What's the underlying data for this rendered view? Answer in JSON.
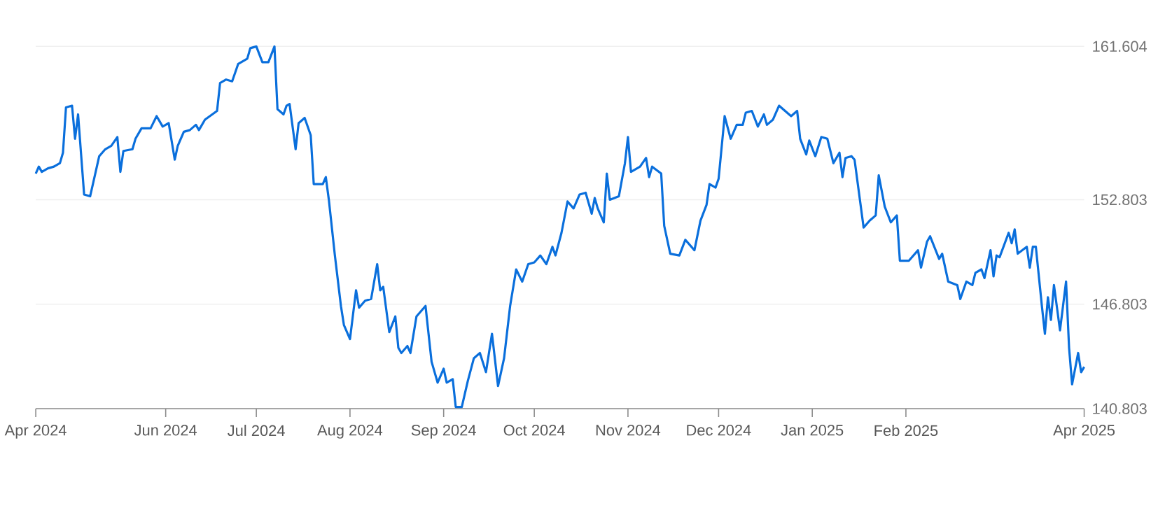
{
  "chart_data": {
    "type": "line",
    "color": "#0a6fdc",
    "grid": "y",
    "xlim": [
      "2024-04-19",
      "2025-04-01"
    ],
    "ylim": [
      140.803,
      161.604
    ],
    "yticks": [
      140.803,
      146.803,
      152.803,
      161.604
    ],
    "xticks": [
      {
        "value": "2024-04-19",
        "label": "Apr 2024"
      },
      {
        "value": "2024-06-01",
        "label": "Jun 2024"
      },
      {
        "value": "2024-07-01",
        "label": "Jul 2024"
      },
      {
        "value": "2024-08-01",
        "label": "Aug 2024"
      },
      {
        "value": "2024-09-01",
        "label": "Sep 2024"
      },
      {
        "value": "2024-10-01",
        "label": "Oct 2024"
      },
      {
        "value": "2024-11-01",
        "label": "Nov 2024"
      },
      {
        "value": "2024-12-01",
        "label": "Dec 2024"
      },
      {
        "value": "2025-01-01",
        "label": "Jan 2025"
      },
      {
        "value": "2025-02-01",
        "label": "Feb 2025"
      },
      {
        "value": "2025-04-01",
        "label": "Apr 2025"
      }
    ],
    "x": [
      "2024-04-19",
      "2024-04-20",
      "2024-04-21",
      "2024-04-23",
      "2024-04-25",
      "2024-04-27",
      "2024-04-28",
      "2024-04-29",
      "2024-05-01",
      "2024-05-02",
      "2024-05-03",
      "2024-05-05",
      "2024-05-07",
      "2024-05-10",
      "2024-05-12",
      "2024-05-14",
      "2024-05-16",
      "2024-05-17",
      "2024-05-18",
      "2024-05-21",
      "2024-05-22",
      "2024-05-24",
      "2024-05-27",
      "2024-05-29",
      "2024-05-31",
      "2024-06-02",
      "2024-06-04",
      "2024-06-05",
      "2024-06-07",
      "2024-06-09",
      "2024-06-11",
      "2024-06-12",
      "2024-06-14",
      "2024-06-18",
      "2024-06-19",
      "2024-06-21",
      "2024-06-23",
      "2024-06-25",
      "2024-06-28",
      "2024-06-29",
      "2024-07-01",
      "2024-07-03",
      "2024-07-05",
      "2024-07-07",
      "2024-07-08",
      "2024-07-10",
      "2024-07-11",
      "2024-07-12",
      "2024-07-14",
      "2024-07-15",
      "2024-07-17",
      "2024-07-19",
      "2024-07-20",
      "2024-07-23",
      "2024-07-24",
      "2024-07-25",
      "2024-07-27",
      "2024-07-29",
      "2024-07-30",
      "2024-08-01",
      "2024-08-03",
      "2024-08-04",
      "2024-08-06",
      "2024-08-08",
      "2024-08-10",
      "2024-08-11",
      "2024-08-12",
      "2024-08-14",
      "2024-08-16",
      "2024-08-17",
      "2024-08-18",
      "2024-08-20",
      "2024-08-21",
      "2024-08-23",
      "2024-08-26",
      "2024-08-28",
      "2024-08-30",
      "2024-09-01",
      "2024-09-02",
      "2024-09-04",
      "2024-09-05",
      "2024-09-07",
      "2024-09-09",
      "2024-09-11",
      "2024-09-13",
      "2024-09-15",
      "2024-09-17",
      "2024-09-19",
      "2024-09-21",
      "2024-09-23",
      "2024-09-25",
      "2024-09-27",
      "2024-09-29",
      "2024-10-01",
      "2024-10-03",
      "2024-10-05",
      "2024-10-07",
      "2024-10-08",
      "2024-10-10",
      "2024-10-12",
      "2024-10-14",
      "2024-10-16",
      "2024-10-18",
      "2024-10-20",
      "2024-10-21",
      "2024-10-22",
      "2024-10-24",
      "2024-10-25",
      "2024-10-26",
      "2024-10-29",
      "2024-10-31",
      "2024-11-01",
      "2024-11-02",
      "2024-11-05",
      "2024-11-07",
      "2024-11-08",
      "2024-11-09",
      "2024-11-12",
      "2024-11-13",
      "2024-11-15",
      "2024-11-18",
      "2024-11-20",
      "2024-11-23",
      "2024-11-25",
      "2024-11-27",
      "2024-11-28",
      "2024-11-30",
      "2024-12-01",
      "2024-12-03",
      "2024-12-05",
      "2024-12-07",
      "2024-12-09",
      "2024-12-10",
      "2024-12-12",
      "2024-12-14",
      "2024-12-16",
      "2024-12-17",
      "2024-12-19",
      "2024-12-21",
      "2024-12-23",
      "2024-12-25",
      "2024-12-27",
      "2024-12-28",
      "2024-12-30",
      "2024-12-31",
      "2025-01-02",
      "2025-01-04",
      "2025-01-06",
      "2025-01-08",
      "2025-01-10",
      "2025-01-11",
      "2025-01-12",
      "2025-01-14",
      "2025-01-15",
      "2025-01-18",
      "2025-01-20",
      "2025-01-22",
      "2025-01-23",
      "2025-01-25",
      "2025-01-27",
      "2025-01-29",
      "2025-01-30",
      "2025-02-02",
      "2025-02-05",
      "2025-02-06",
      "2025-02-08",
      "2025-02-09",
      "2025-02-12",
      "2025-02-13",
      "2025-02-15",
      "2025-02-18",
      "2025-02-19",
      "2025-02-21",
      "2025-02-23",
      "2025-02-24",
      "2025-02-26",
      "2025-02-27",
      "2025-03-01",
      "2025-03-02",
      "2025-03-03",
      "2025-03-04",
      "2025-03-07",
      "2025-03-08",
      "2025-03-09",
      "2025-03-10",
      "2025-03-13",
      "2025-03-14",
      "2025-03-15",
      "2025-03-16",
      "2025-03-18",
      "2025-03-19",
      "2025-03-20",
      "2025-03-21",
      "2025-03-22",
      "2025-03-24",
      "2025-03-25",
      "2025-03-26",
      "2025-03-27",
      "2025-03-28",
      "2025-03-30",
      "2025-03-31",
      "2025-04-01"
    ],
    "values": [
      154.3,
      154.7,
      154.4,
      154.6,
      154.7,
      154.9,
      155.5,
      158.1,
      158.2,
      156.3,
      157.7,
      153.1,
      153.0,
      155.3,
      155.7,
      155.9,
      156.4,
      154.4,
      155.6,
      155.7,
      156.3,
      156.9,
      156.9,
      157.6,
      157.0,
      157.2,
      155.1,
      155.9,
      156.7,
      156.8,
      157.1,
      156.8,
      157.4,
      157.9,
      159.5,
      159.7,
      159.6,
      160.6,
      160.9,
      161.5,
      161.6,
      160.7,
      160.7,
      161.6,
      158.0,
      157.7,
      158.2,
      158.3,
      155.7,
      157.2,
      157.5,
      156.5,
      153.7,
      153.7,
      154.1,
      152.8,
      149.6,
      146.7,
      145.6,
      144.8,
      147.6,
      146.6,
      147.0,
      147.1,
      149.1,
      147.6,
      147.8,
      145.2,
      146.1,
      144.3,
      144.0,
      144.4,
      144.0,
      146.1,
      146.7,
      143.5,
      142.3,
      143.1,
      142.3,
      142.5,
      140.9,
      140.9,
      142.4,
      143.7,
      144.0,
      142.9,
      145.1,
      142.1,
      143.7,
      146.7,
      148.8,
      148.1,
      149.1,
      149.2,
      149.6,
      149.1,
      150.1,
      149.6,
      150.9,
      152.7,
      152.3,
      153.1,
      153.2,
      152.0,
      152.9,
      152.3,
      151.5,
      154.3,
      152.8,
      153.0,
      154.9,
      156.4,
      154.4,
      154.7,
      155.2,
      154.1,
      154.7,
      154.3,
      151.3,
      149.7,
      149.6,
      150.5,
      149.9,
      151.6,
      152.5,
      153.7,
      153.5,
      154.0,
      157.6,
      156.3,
      157.1,
      157.1,
      157.8,
      157.9,
      157.0,
      157.7,
      157.1,
      157.4,
      158.2,
      157.9,
      157.6,
      157.9,
      156.3,
      155.4,
      156.2,
      155.3,
      156.4,
      156.3,
      154.9,
      155.5,
      154.1,
      155.2,
      155.3,
      155.1,
      151.2,
      151.6,
      151.9,
      154.2,
      152.4,
      151.5,
      151.9,
      149.3,
      149.3,
      149.9,
      148.9,
      150.4,
      150.7,
      149.4,
      149.7,
      148.1,
      147.9,
      147.1,
      148.1,
      147.9,
      148.6,
      148.8,
      148.3,
      149.9,
      148.4,
      149.6,
      149.5,
      150.9,
      150.3,
      151.1,
      149.7,
      150.1,
      148.9,
      150.1,
      150.1,
      146.7,
      145.1,
      147.2,
      145.9,
      147.9,
      145.3,
      146.7,
      148.1,
      144.3,
      142.2,
      144.0,
      142.9,
      143.2
    ]
  }
}
